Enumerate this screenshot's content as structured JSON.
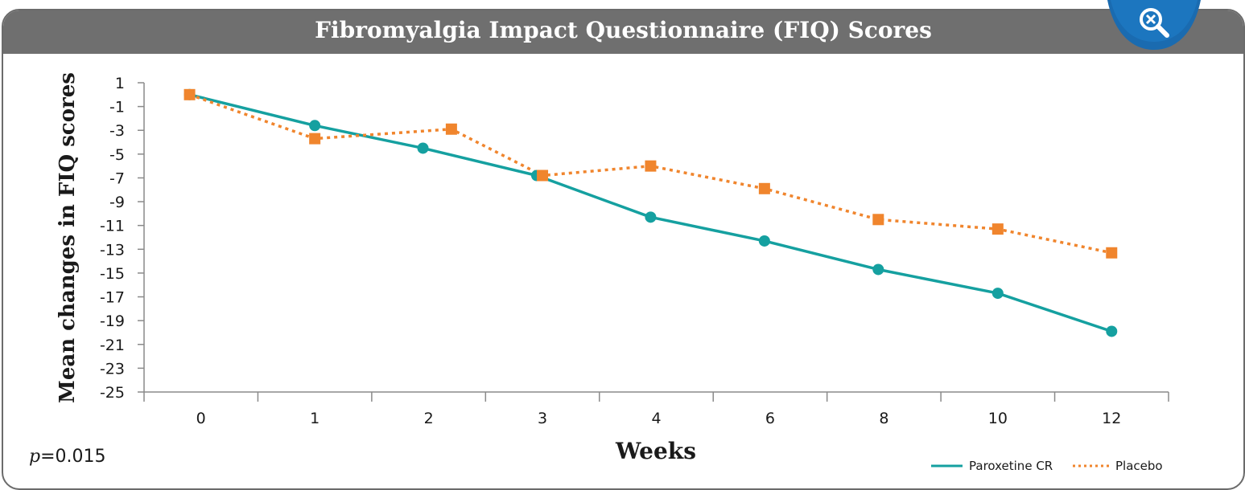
{
  "header": {
    "title": "Fibromyalgia Impact Questionnaire (FIQ) Scores",
    "zoom_icon": "zoom-search-icon"
  },
  "annotation": {
    "p_label": "p",
    "p_value": "=0.015"
  },
  "colors": {
    "header": "#6f6f6f",
    "paroxetine": "#15a0a0",
    "placebo": "#f0852d",
    "zoom_button": "#1a6bb0"
  },
  "chart_data": {
    "type": "line",
    "title": "Fibromyalgia Impact Questionnaire (FIQ) Scores",
    "xlabel": "Weeks",
    "ylabel": "Mean changes in FIQ scores",
    "categories": [
      "0",
      "1",
      "2",
      "3",
      "4",
      "6",
      "8",
      "10",
      "12"
    ],
    "yticks": [
      1,
      -1,
      -3,
      -5,
      -7,
      -9,
      -11,
      -13,
      -15,
      -17,
      -19,
      -21,
      -23,
      -25
    ],
    "ylim": [
      -25,
      1
    ],
    "grid": false,
    "legend_position": "bottom-right",
    "series": [
      {
        "name": "Paroxetine CR",
        "style": "solid",
        "marker": "circle",
        "x": [
          -0.1,
          1.0,
          1.95,
          2.95,
          3.95,
          4.95,
          5.95,
          7.0,
          8.0
        ],
        "values": [
          0.0,
          -2.6,
          -4.5,
          -6.8,
          -10.3,
          -12.3,
          -14.7,
          -16.7,
          -19.9
        ]
      },
      {
        "name": "Placebo",
        "style": "dotted",
        "marker": "square",
        "x": [
          -0.1,
          1.0,
          2.2,
          3.0,
          3.95,
          4.95,
          5.95,
          7.0,
          8.0
        ],
        "values": [
          0.0,
          -3.7,
          -2.9,
          -6.8,
          -6.0,
          -7.9,
          -10.5,
          -11.3,
          -13.3
        ]
      }
    ]
  }
}
